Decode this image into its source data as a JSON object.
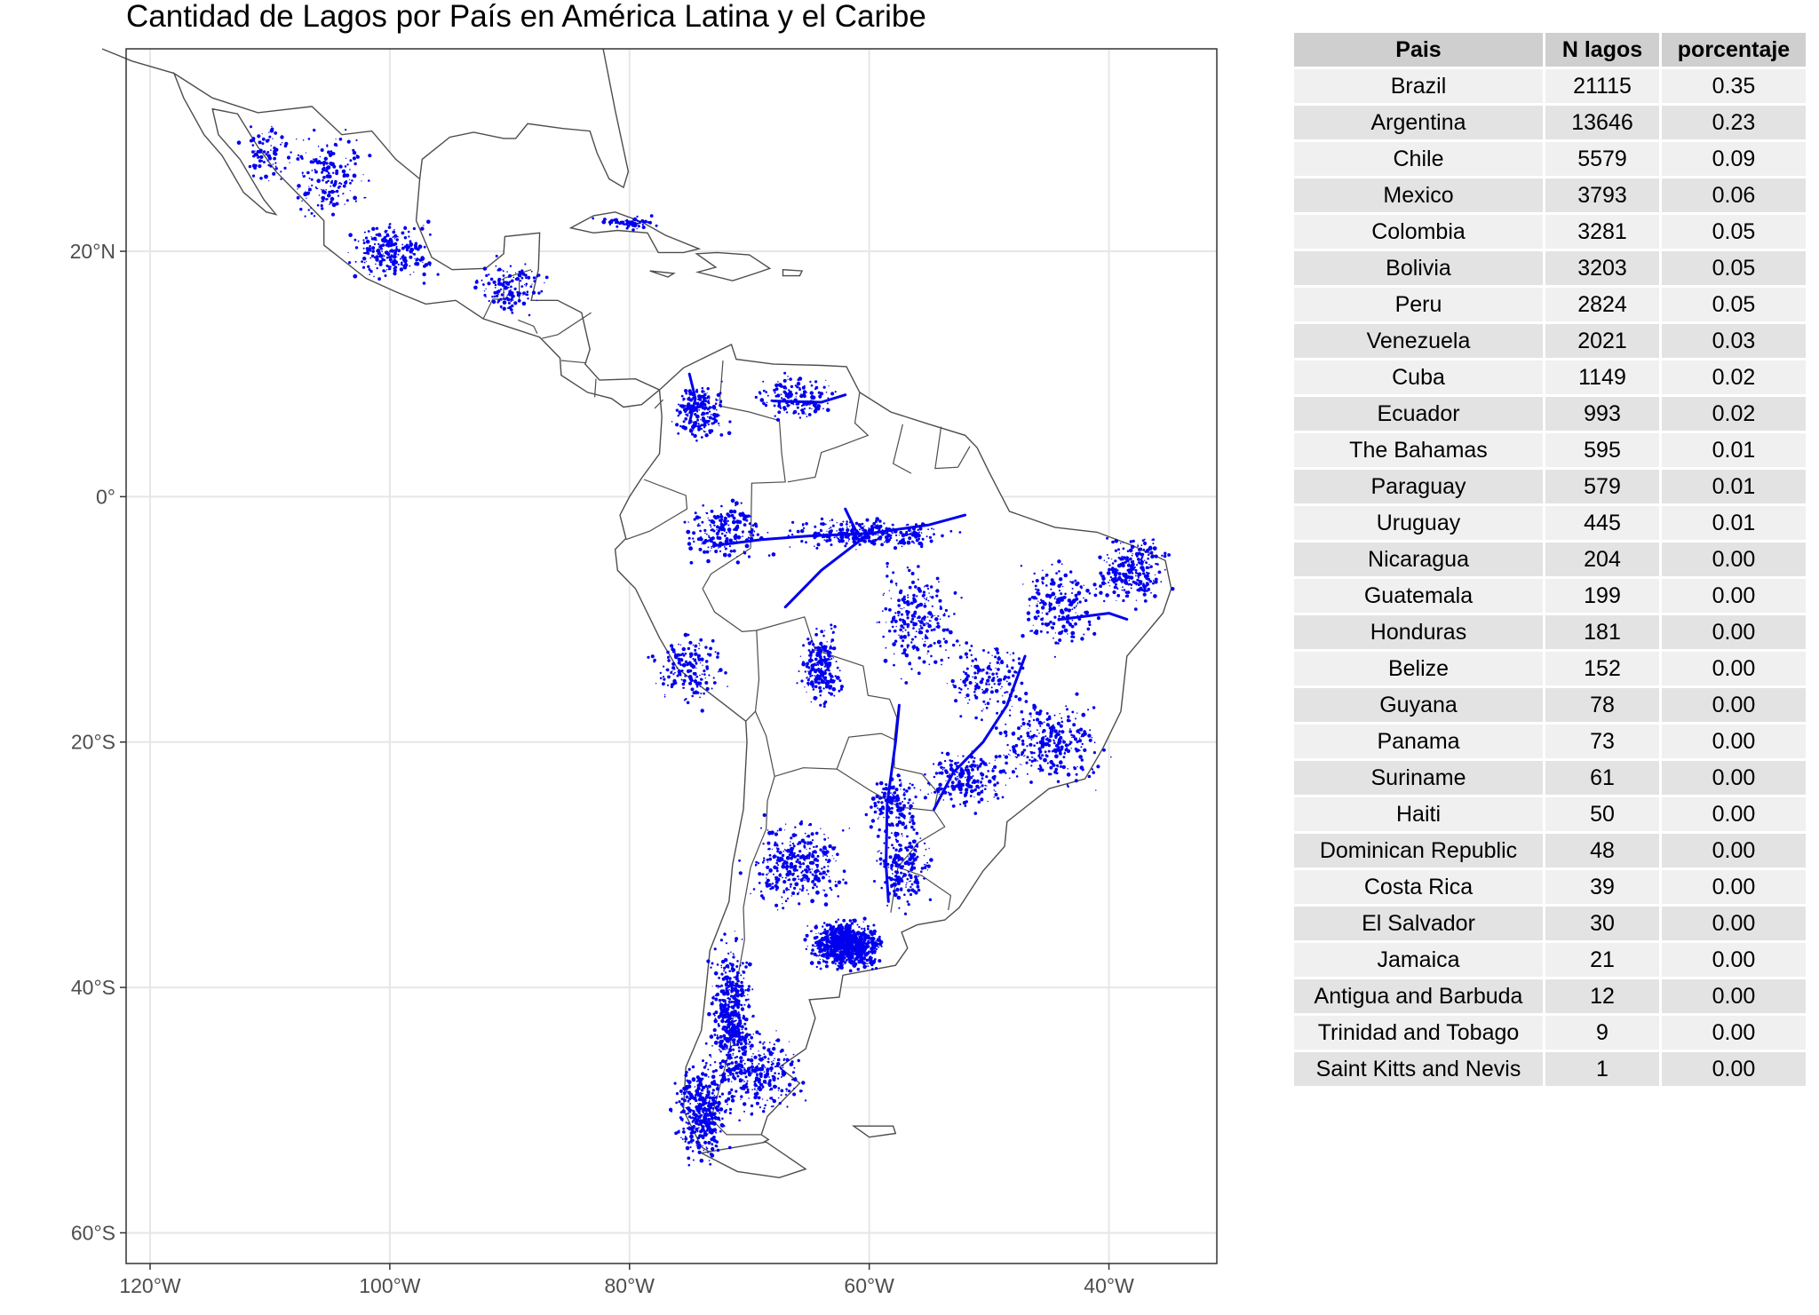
{
  "title": "Cantidad de Lagos por País en América Latina y el Caribe",
  "colors": {
    "lakes": "#0000ee",
    "borders": "#4d4d4d",
    "grid": "#e6e6e6",
    "panel_border": "#333333"
  },
  "map": {
    "x_ticks": [
      {
        "value": -120,
        "label": "120°W"
      },
      {
        "value": -100,
        "label": "100°W"
      },
      {
        "value": -80,
        "label": "80°W"
      },
      {
        "value": -60,
        "label": "60°W"
      },
      {
        "value": -40,
        "label": "40°W"
      }
    ],
    "y_ticks": [
      {
        "value": 20,
        "label": "20°N"
      },
      {
        "value": 0,
        "label": "0°"
      },
      {
        "value": -20,
        "label": "20°S"
      },
      {
        "value": -40,
        "label": "40°S"
      },
      {
        "value": -60,
        "label": "60°S"
      }
    ],
    "xlim": [
      -122,
      -31
    ],
    "ylim": [
      -62.5,
      36.5
    ]
  },
  "table": {
    "headers": [
      "Pais",
      "N lagos",
      "porcentaje"
    ],
    "rows": [
      [
        "Brazil",
        "21115",
        "0.35"
      ],
      [
        "Argentina",
        "13646",
        "0.23"
      ],
      [
        "Chile",
        "5579",
        "0.09"
      ],
      [
        "Mexico",
        "3793",
        "0.06"
      ],
      [
        "Colombia",
        "3281",
        "0.05"
      ],
      [
        "Bolivia",
        "3203",
        "0.05"
      ],
      [
        "Peru",
        "2824",
        "0.05"
      ],
      [
        "Venezuela",
        "2021",
        "0.03"
      ],
      [
        "Cuba",
        "1149",
        "0.02"
      ],
      [
        "Ecuador",
        "993",
        "0.02"
      ],
      [
        "The Bahamas",
        "595",
        "0.01"
      ],
      [
        "Paraguay",
        "579",
        "0.01"
      ],
      [
        "Uruguay",
        "445",
        "0.01"
      ],
      [
        "Nicaragua",
        "204",
        "0.00"
      ],
      [
        "Guatemala",
        "199",
        "0.00"
      ],
      [
        "Honduras",
        "181",
        "0.00"
      ],
      [
        "Belize",
        "152",
        "0.00"
      ],
      [
        "Guyana",
        "78",
        "0.00"
      ],
      [
        "Panama",
        "73",
        "0.00"
      ],
      [
        "Suriname",
        "61",
        "0.00"
      ],
      [
        "Haiti",
        "50",
        "0.00"
      ],
      [
        "Dominican Republic",
        "48",
        "0.00"
      ],
      [
        "Costa Rica",
        "39",
        "0.00"
      ],
      [
        "El Salvador",
        "30",
        "0.00"
      ],
      [
        "Jamaica",
        "21",
        "0.00"
      ],
      [
        "Antigua and Barbuda",
        "12",
        "0.00"
      ],
      [
        "Trinidad and Tobago",
        "9",
        "0.00"
      ],
      [
        "Saint Kitts and Nevis",
        "1",
        "0.00"
      ]
    ]
  }
}
